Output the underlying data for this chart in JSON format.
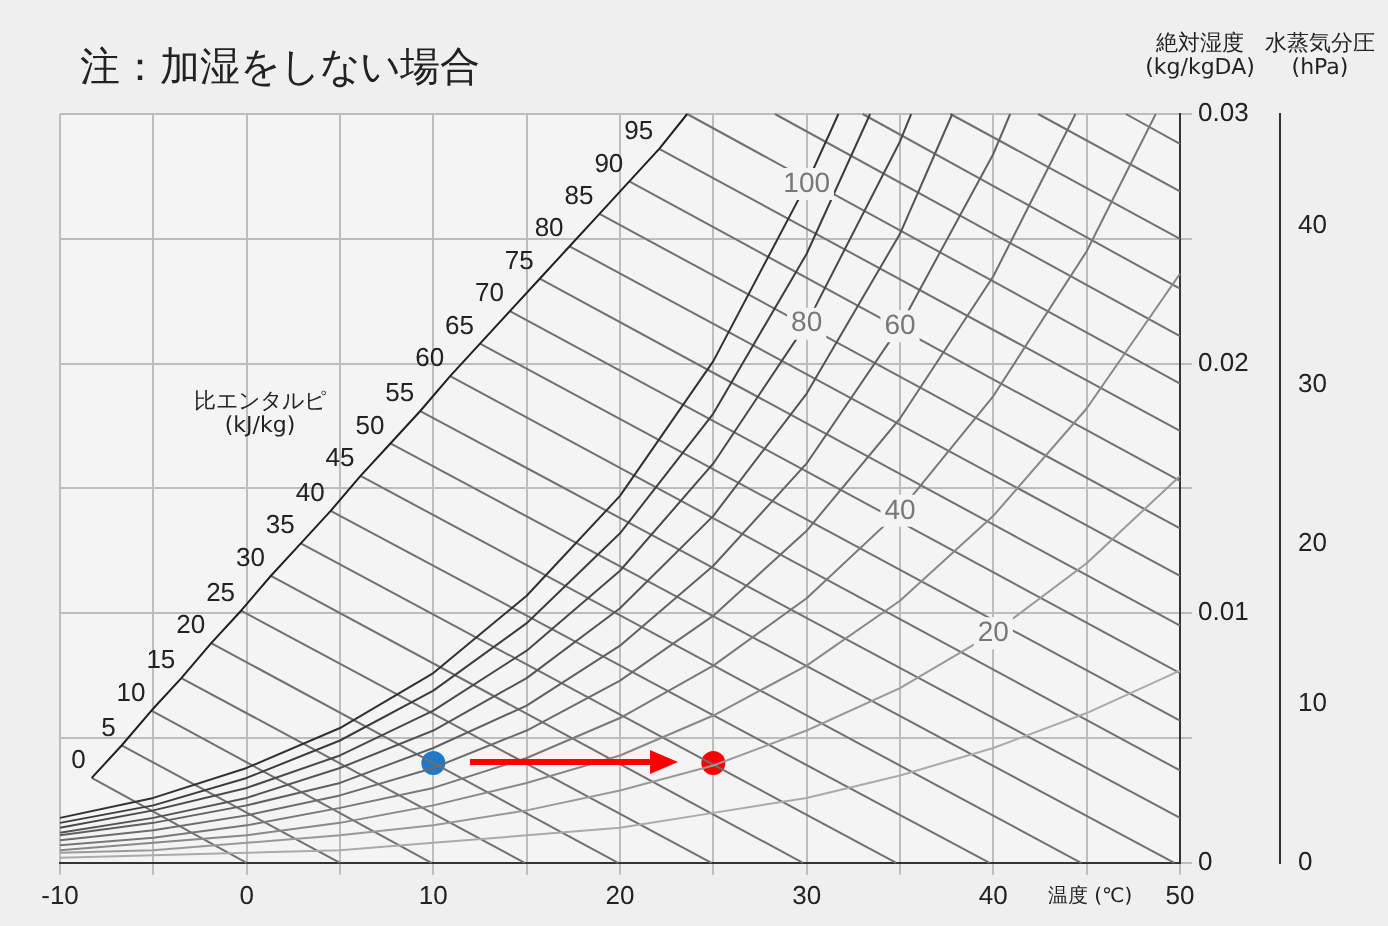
{
  "chart_data": {
    "type": "line",
    "title": "注：加湿をしない場合",
    "xlabel": "温度 (℃)",
    "ylabel": "絶対湿度\n(kg/kgDA)",
    "y2label": "水蒸気分圧\n(hPa)",
    "xlim": [
      -10,
      50
    ],
    "xticks": [
      -10,
      {
        "value": -5,
        "label": null
      },
      0,
      {
        "value": 5,
        "label": null
      },
      10,
      {
        "value": 15,
        "label": null
      },
      20,
      {
        "value": 25,
        "label": null
      },
      30,
      {
        "value": 35,
        "label": null
      },
      40,
      {
        "value": 45,
        "label": null
      },
      50
    ],
    "ylim": [
      0,
      0.03
    ],
    "yticks": [
      0,
      {
        "value": 0.005,
        "label": null
      },
      0.01,
      {
        "value": 0.015,
        "label": null
      },
      0.02,
      {
        "value": 0.025,
        "label": null
      },
      0.03
    ],
    "y2lim": [
      0,
      47
    ],
    "y2ticks": [
      0,
      10,
      20,
      30,
      40
    ],
    "grid": true,
    "legend": false,
    "marker": "none",
    "annotations": [
      "比エンタルピ\n(kJ/kg)",
      {
        "text": "100",
        "x": 30,
        "y": 0.0272
      },
      {
        "text": "80",
        "x": 30,
        "y": 0.0216
      },
      {
        "text": "60",
        "x": 35,
        "y": 0.0215
      },
      {
        "text": "40",
        "x": 35,
        "y": 0.0141
      },
      {
        "text": "20",
        "x": 40,
        "y": 0.0092
      }
    ],
    "series": [
      {
        "type": "line",
        "color": "#303030",
        "x": [
          -10,
          -5,
          0,
          5,
          10,
          15,
          20,
          25,
          30,
          31.7
        ],
        "values": [
          0.0018,
          0.0026,
          0.0038,
          0.0054,
          0.0076,
          0.0107,
          0.0147,
          0.0201,
          0.0272,
          0.03
        ]
      },
      {
        "type": "line",
        "color": "#3c3c3c",
        "x": [
          -10,
          -5,
          0,
          5,
          10,
          15,
          20,
          25,
          30,
          33.4
        ],
        "values": [
          0.0016,
          0.0023,
          0.0034,
          0.0049,
          0.0069,
          0.0096,
          0.0132,
          0.018,
          0.0244,
          0.03
        ]
      },
      {
        "type": "line",
        "color": "#484848",
        "x": [
          -10,
          -5,
          0,
          5,
          10,
          15,
          20,
          25,
          30,
          35,
          35.6
        ],
        "values": [
          0.0014,
          0.0021,
          0.003,
          0.0043,
          0.0061,
          0.0085,
          0.0117,
          0.016,
          0.0216,
          0.0289,
          0.03
        ]
      },
      {
        "type": "line",
        "color": "#545454",
        "x": [
          -10,
          -5,
          0,
          5,
          10,
          15,
          20,
          25,
          30,
          35,
          37.8
        ],
        "values": [
          0.0012,
          0.0018,
          0.0026,
          0.0038,
          0.0053,
          0.0074,
          0.0102,
          0.0139,
          0.0188,
          0.0252,
          0.03
        ]
      },
      {
        "type": "line",
        "color": "#606060",
        "x": [
          -10,
          -5,
          0,
          5,
          10,
          15,
          20,
          25,
          30,
          35,
          40,
          40.9
        ],
        "values": [
          0.0011,
          0.0016,
          0.0023,
          0.0032,
          0.0046,
          0.0063,
          0.0087,
          0.0119,
          0.016,
          0.0215,
          0.0284,
          0.03
        ]
      },
      {
        "type": "line",
        "color": "#6c6c6c",
        "x": [
          -10,
          -5,
          0,
          5,
          10,
          15,
          20,
          25,
          30,
          35,
          40,
          44.4
        ],
        "values": [
          0.0009,
          0.0013,
          0.0019,
          0.0027,
          0.0038,
          0.0053,
          0.0073,
          0.0099,
          0.0133,
          0.0178,
          0.0235,
          0.03
        ]
      },
      {
        "type": "line",
        "color": "#787878",
        "x": [
          -10,
          -5,
          0,
          5,
          10,
          15,
          20,
          25,
          30,
          35,
          40,
          45,
          48.7
        ],
        "values": [
          0.0007,
          0.001,
          0.0015,
          0.0022,
          0.003,
          0.0042,
          0.0058,
          0.0079,
          0.0106,
          0.0141,
          0.0187,
          0.0245,
          0.03
        ]
      },
      {
        "type": "line",
        "color": "#888888",
        "x": [
          -10,
          -5,
          0,
          5,
          10,
          15,
          20,
          25,
          30,
          35,
          40,
          45,
          50
        ],
        "values": [
          0.0005,
          0.0008,
          0.0011,
          0.0016,
          0.0023,
          0.0032,
          0.0043,
          0.0059,
          0.0079,
          0.0105,
          0.0139,
          0.0182,
          0.0236
        ]
      },
      {
        "type": "line",
        "color": "#999999",
        "x": [
          -10,
          -5,
          0,
          5,
          10,
          15,
          20,
          25,
          30,
          35,
          40,
          45,
          50
        ],
        "values": [
          0.0004,
          0.0005,
          0.0008,
          0.0011,
          0.0015,
          0.0021,
          0.0029,
          0.0039,
          0.0053,
          0.007,
          0.0092,
          0.012,
          0.0155
        ]
      },
      {
        "type": "line",
        "color": "#aaaaaa",
        "x": [
          -10,
          -5,
          0,
          5,
          10,
          15,
          20,
          25,
          30,
          35,
          40,
          45,
          50
        ],
        "values": [
          0.0002,
          0.0003,
          0.0004,
          0.0005,
          0.0008,
          0.0011,
          0.0014,
          0.002,
          0.0026,
          0.0035,
          0.0046,
          0.006,
          0.0077
        ]
      },
      {
        "type": "line",
        "color": "#202020",
        "x": [
          -8.3,
          -6.7,
          -5.1,
          -3.5,
          -1.9,
          -0.3,
          1.3,
          2.9,
          4.5,
          6.1,
          7.7,
          9.3,
          10.9,
          12.5,
          14.1,
          15.7,
          17.3,
          18.9,
          20.5,
          22.1,
          23.6
        ],
        "values": [
          0.0034,
          0.0047,
          0.0061,
          0.0074,
          0.0088,
          0.0101,
          0.0115,
          0.0128,
          0.0141,
          0.0155,
          0.0168,
          0.0181,
          0.0195,
          0.0208,
          0.0221,
          0.0234,
          0.0247,
          0.026,
          0.0273,
          0.0286,
          0.03
        ]
      },
      {
        "type": "line",
        "name": "0",
        "color": "#707070",
        "x": [
          -8.3,
          0
        ],
        "values": [
          0.0034,
          0
        ]
      },
      {
        "type": "line",
        "name": "5",
        "color": "#707070",
        "x": [
          -6.7,
          5
        ],
        "values": [
          0.0047,
          0
        ]
      },
      {
        "type": "line",
        "name": "10",
        "color": "#707070",
        "x": [
          -5.1,
          9.9
        ],
        "values": [
          0.0061,
          0
        ]
      },
      {
        "type": "line",
        "name": "15",
        "color": "#707070",
        "x": [
          -3.5,
          14.9
        ],
        "values": [
          0.0074,
          0
        ]
      },
      {
        "type": "line",
        "name": "20",
        "color": "#707070",
        "x": [
          -1.9,
          19.9
        ],
        "values": [
          0.0088,
          0
        ]
      },
      {
        "type": "line",
        "name": "25",
        "color": "#707070",
        "x": [
          -0.3,
          24.9
        ],
        "values": [
          0.0101,
          0
        ]
      },
      {
        "type": "line",
        "name": "30",
        "color": "#707070",
        "x": [
          1.3,
          29.8
        ],
        "values": [
          0.0115,
          0
        ]
      },
      {
        "type": "line",
        "name": "35",
        "color": "#707070",
        "x": [
          2.9,
          34.8
        ],
        "values": [
          0.0128,
          0
        ]
      },
      {
        "type": "line",
        "name": "40",
        "color": "#707070",
        "x": [
          4.5,
          39.8
        ],
        "values": [
          0.0141,
          0
        ]
      },
      {
        "type": "line",
        "name": "45",
        "color": "#707070",
        "x": [
          6.1,
          44.7
        ],
        "values": [
          0.0155,
          0
        ]
      },
      {
        "type": "line",
        "name": "50",
        "color": "#707070",
        "x": [
          7.7,
          49.7
        ],
        "values": [
          0.0168,
          0
        ]
      },
      {
        "type": "line",
        "name": "55",
        "color": "#707070",
        "x": [
          9.3,
          50
        ],
        "values": [
          0.0181,
          0.0018
        ]
      },
      {
        "type": "line",
        "name": "60",
        "color": "#707070",
        "x": [
          10.9,
          50
        ],
        "values": [
          0.0195,
          0.0037
        ]
      },
      {
        "type": "line",
        "name": "65",
        "color": "#707070",
        "x": [
          12.5,
          50
        ],
        "values": [
          0.0208,
          0.0057
        ]
      },
      {
        "type": "line",
        "name": "70",
        "color": "#707070",
        "x": [
          14.1,
          50
        ],
        "values": [
          0.0221,
          0.0076
        ]
      },
      {
        "type": "line",
        "name": "75",
        "color": "#707070",
        "x": [
          15.7,
          50
        ],
        "values": [
          0.0234,
          0.0095
        ]
      },
      {
        "type": "line",
        "name": "80",
        "color": "#707070",
        "x": [
          17.3,
          50
        ],
        "values": [
          0.0247,
          0.0115
        ]
      },
      {
        "type": "line",
        "name": "85",
        "color": "#707070",
        "x": [
          18.9,
          50
        ],
        "values": [
          0.026,
          0.0134
        ]
      },
      {
        "type": "line",
        "name": "90",
        "color": "#707070",
        "x": [
          20.5,
          50
        ],
        "values": [
          0.0273,
          0.0153
        ]
      },
      {
        "type": "line",
        "name": "95",
        "color": "#707070",
        "x": [
          22.1,
          50
        ],
        "values": [
          0.0286,
          0.0173
        ]
      },
      {
        "type": "line",
        "color": "#707070",
        "x": [
          23.6,
          50
        ],
        "values": [
          0.03,
          0.0192
        ]
      },
      {
        "type": "line",
        "color": "#707070",
        "x": [
          28.3,
          50
        ],
        "values": [
          0.03,
          0.0211
        ]
      },
      {
        "type": "line",
        "color": "#707070",
        "x": [
          33,
          50
        ],
        "values": [
          0.03,
          0.023
        ]
      },
      {
        "type": "line",
        "color": "#707070",
        "x": [
          37.7,
          50
        ],
        "values": [
          0.03,
          0.025
        ]
      },
      {
        "type": "line",
        "color": "#707070",
        "x": [
          42.4,
          50
        ],
        "values": [
          0.03,
          0.0269
        ]
      },
      {
        "type": "line",
        "color": "#707070",
        "x": [
          47.1,
          50
        ],
        "values": [
          0.03,
          0.0288
        ]
      },
      {
        "type": "scatter",
        "marker": "circle",
        "colors": [
          "#1f78c8",
          "#ff0000"
        ],
        "x": [
          10,
          25
        ],
        "values": [
          0.004,
          0.004
        ]
      }
    ]
  }
}
